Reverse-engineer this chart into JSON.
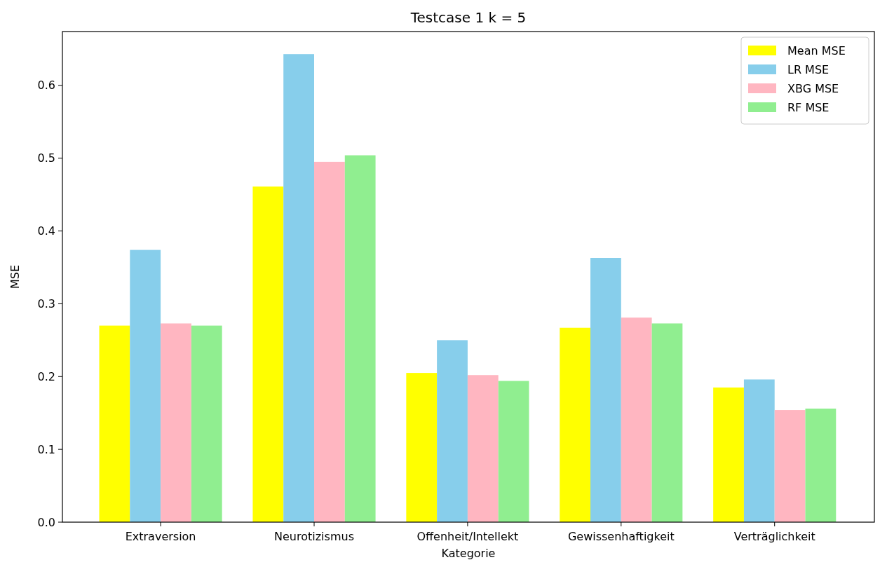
{
  "chart_data": {
    "type": "bar",
    "title": "Testcase 1 k = 5",
    "xlabel": "Kategorie",
    "ylabel": "MSE",
    "categories": [
      "Extraversion",
      "Neurotizismus",
      "Offenheit/Intellekt",
      "Gewissenhaftigkeit",
      "Verträglichkeit"
    ],
    "series": [
      {
        "name": "Mean MSE",
        "color": "#ffff00",
        "values": [
          0.27,
          0.461,
          0.205,
          0.267,
          0.185
        ]
      },
      {
        "name": "LR MSE",
        "color": "#87ceeb",
        "values": [
          0.374,
          0.643,
          0.25,
          0.363,
          0.196
        ]
      },
      {
        "name": "XBG MSE",
        "color": "#ffb6c1",
        "values": [
          0.273,
          0.495,
          0.202,
          0.281,
          0.154
        ]
      },
      {
        "name": "RF MSE",
        "color": "#90ee90",
        "values": [
          0.27,
          0.504,
          0.194,
          0.273,
          0.156
        ]
      }
    ],
    "ylim": [
      0,
      0.674
    ],
    "yticks": [
      {
        "value": 0,
        "label": "0.0"
      },
      0.1,
      0.2,
      0.3,
      0.4,
      0.5,
      0.6
    ],
    "legend": "top right"
  }
}
